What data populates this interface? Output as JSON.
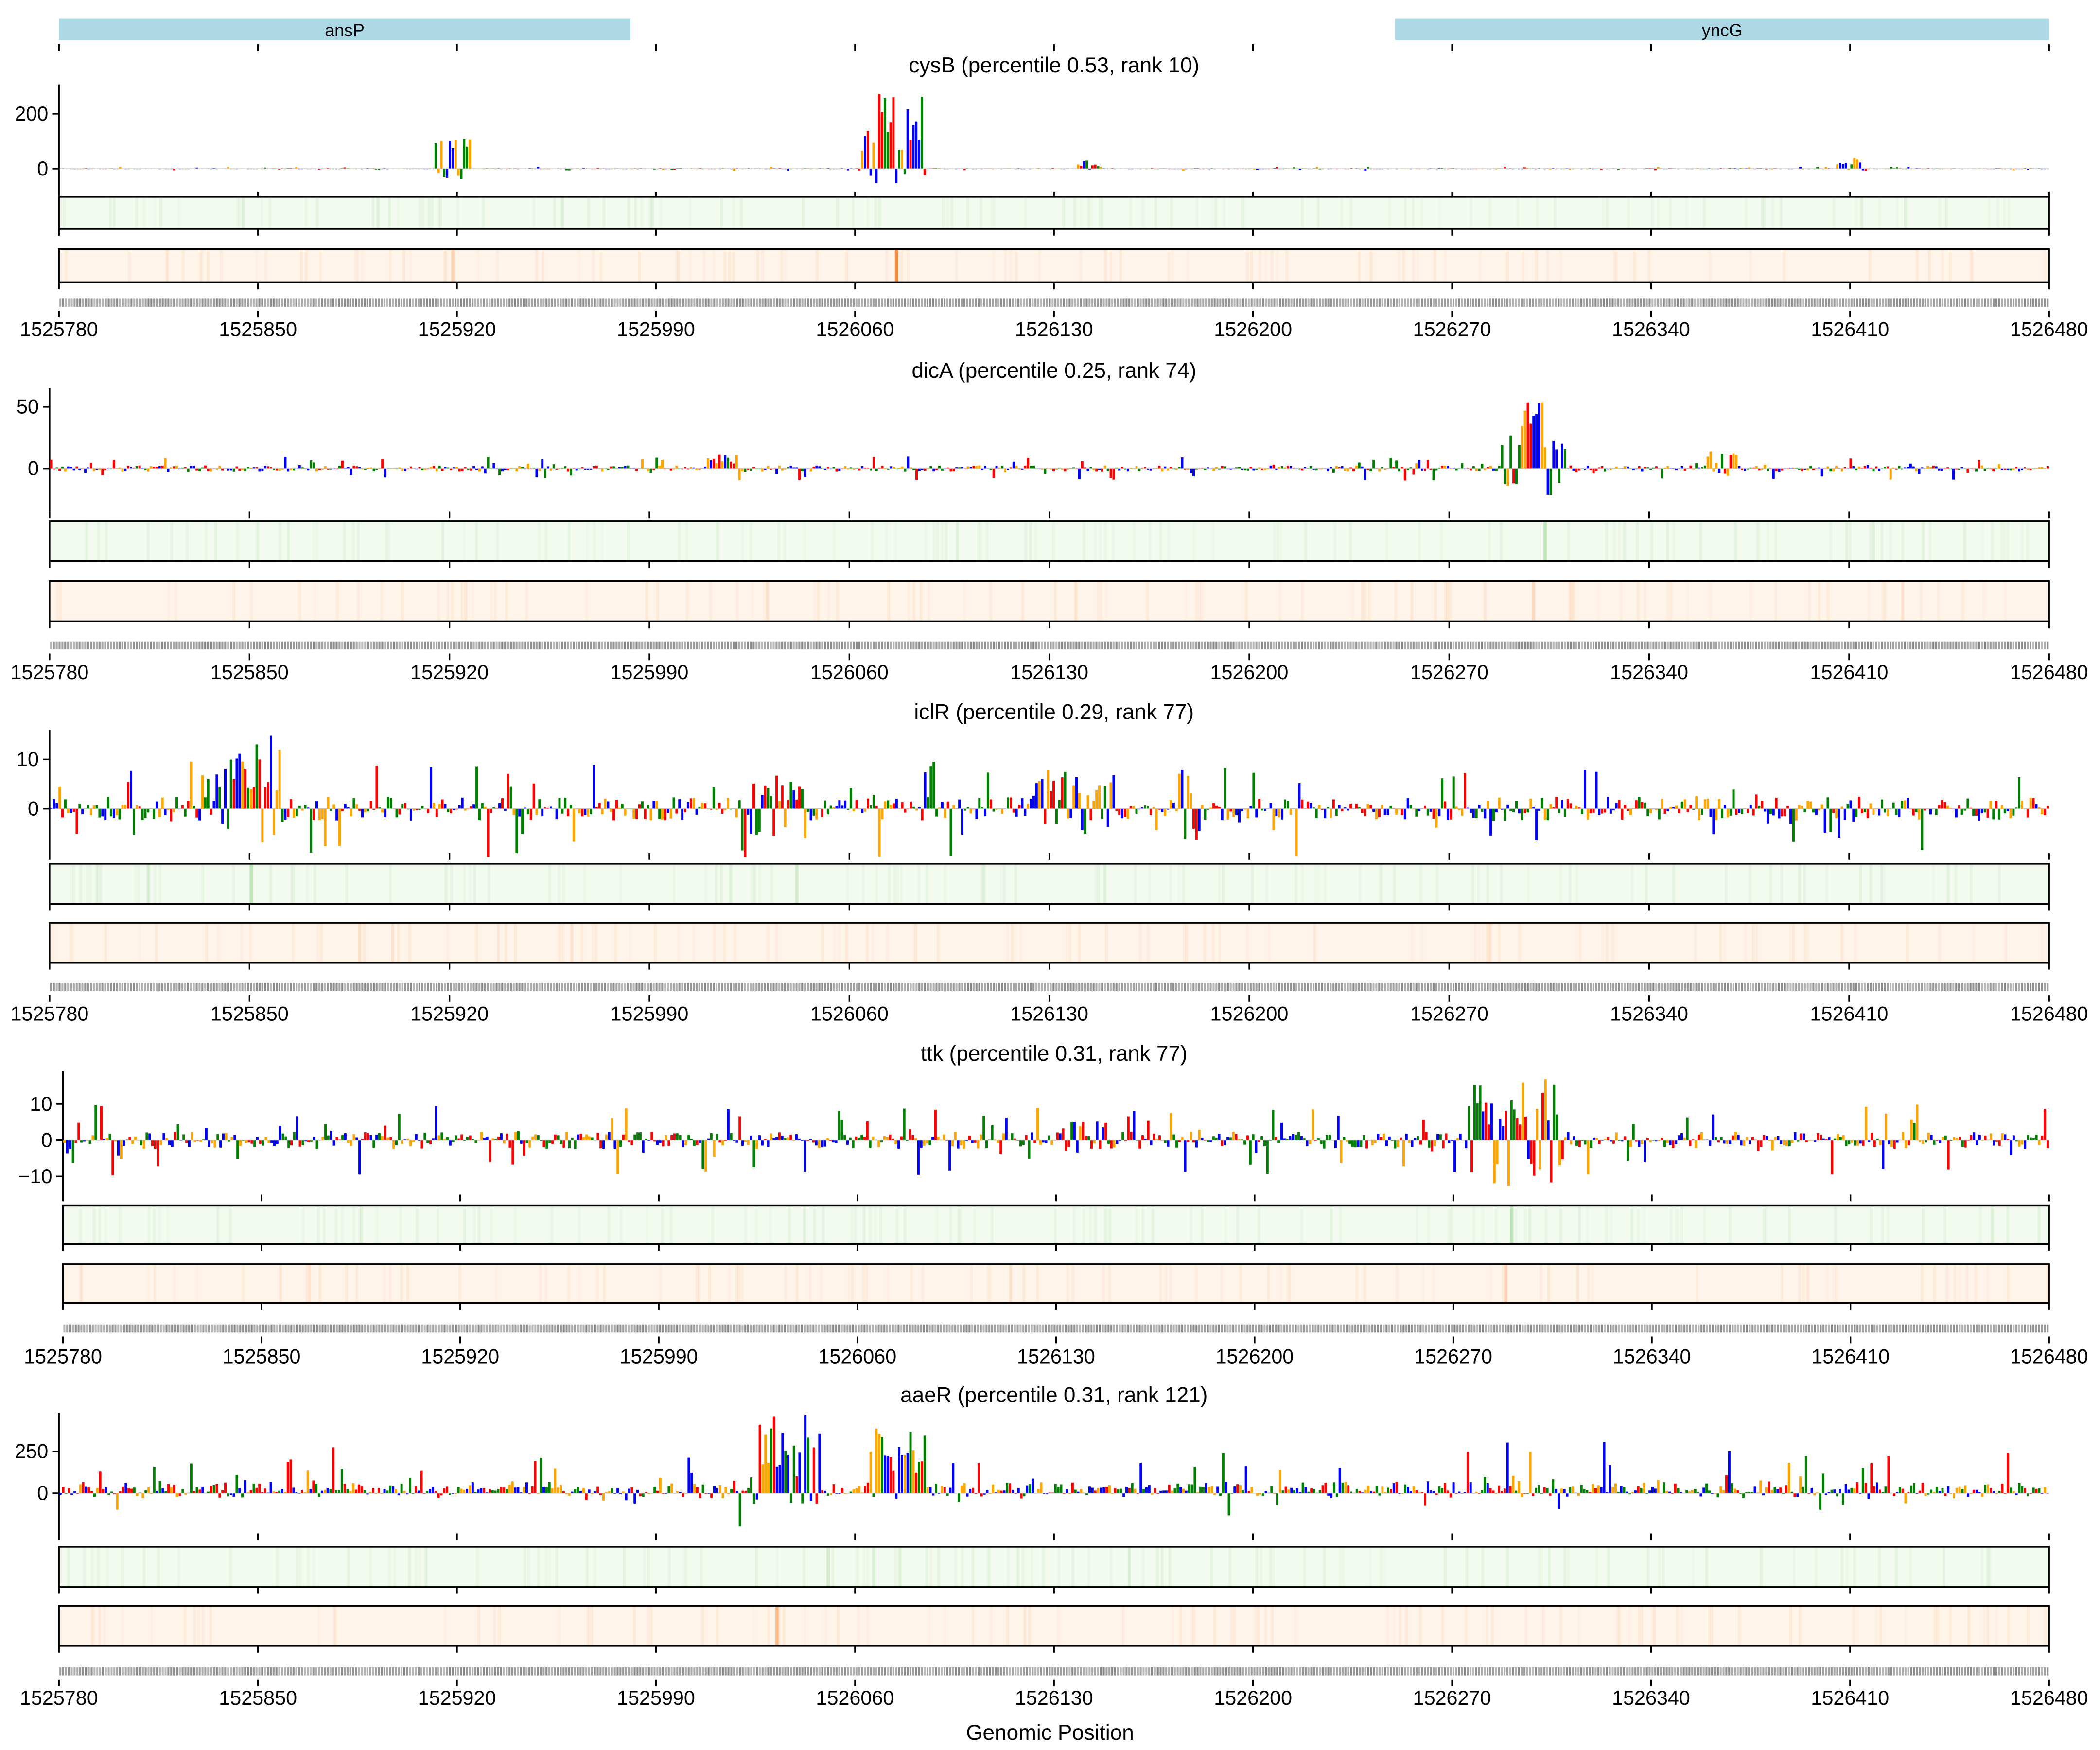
{
  "colors": {
    "A": "#ff0000",
    "C": "#0000ff",
    "G": "#ffa500",
    "T": "#008000",
    "gene": "#add8e6",
    "attr_heat": "#f3faef",
    "attr_heat_hi": "#9fd89a",
    "pred_heat": "#fef4ea",
    "pred_heat_hi": "#f58c3c"
  },
  "genes": [
    {
      "name": "ansP",
      "start": 1525780,
      "end": 1525981
    },
    {
      "name": "yncG",
      "start": 1526250,
      "end": 1526480
    }
  ],
  "chart_data": {
    "type": "sequence-logo-tracks",
    "xlabel": "Genomic Position",
    "xlim": [
      1525780,
      1526480
    ],
    "xticks": [
      "1525780",
      "1525850",
      "1525920",
      "1525990",
      "1526060",
      "1526130",
      "1526200",
      "1526270",
      "1526340",
      "1526410",
      "1526480"
    ],
    "panels": [
      {
        "title": "cysB (percentile 0.53, rank 10)",
        "ylim": [
          -83,
          307
        ],
        "yticks": [
          0,
          200
        ],
        "ytick_labels": [
          "0",
          "200"
        ],
        "noise": 3,
        "noise_bias": 0,
        "peaks": [
          [
            1525912,
            1525924,
            110,
            -40
          ],
          [
            1526062,
            1526084,
            300,
            -60
          ],
          [
            1526138,
            1526146,
            30,
            -5
          ],
          [
            1526405,
            1526415,
            40,
            -8
          ]
        ],
        "attr_highlights": [
          [
            1526068,
            0.15
          ]
        ],
        "pred_highlights": [
          [
            1525918,
            0.3
          ],
          [
            1526074,
            1.0
          ]
        ]
      },
      {
        "title": "dicA (percentile 0.25, rank 74)",
        "ylim": [
          -35,
          65
        ],
        "yticks": [
          0,
          50
        ],
        "ytick_labels": [
          "0",
          "50"
        ],
        "noise": 4,
        "noise_bias": 0,
        "peaks": [
          [
            1526288,
            1526310,
            65,
            -30
          ],
          [
            1526010,
            1526020,
            12,
            -6
          ],
          [
            1526360,
            1526370,
            14,
            -6
          ]
        ],
        "attr_highlights": [
          [
            1526303,
            0.6
          ]
        ],
        "pred_highlights": [
          [
            1526299,
            0.25
          ]
        ]
      },
      {
        "title": "iclR (percentile 0.29, rank 77)",
        "ylim": [
          -9,
          16
        ],
        "yticks": [
          0,
          10
        ],
        "ytick_labels": [
          "0",
          "10"
        ],
        "noise": 4,
        "noise_bias": 0,
        "peaks": [
          [
            1525838,
            1525861,
            15,
            -8
          ],
          [
            1526025,
            1526044,
            7,
            -6
          ],
          [
            1526124,
            1526152,
            8,
            -6
          ],
          [
            1526175,
            1526182,
            9,
            -7
          ]
        ],
        "attr_highlights": [
          [
            1525850,
            0.6
          ],
          [
            1526041,
            0.4
          ]
        ],
        "pred_highlights": [
          [
            1525888,
            0.2
          ]
        ]
      },
      {
        "title": "ttk (percentile 0.31, rank 77)",
        "ylim": [
          -15,
          19
        ],
        "yticks": [
          -10,
          0,
          10
        ],
        "ytick_labels": [
          "−10",
          "0",
          "10"
        ],
        "noise": 4,
        "noise_bias": 0,
        "peaks": [
          [
            1526275,
            1526308,
            18,
            -14
          ],
          [
            1526130,
            1526140,
            6,
            -5
          ]
        ],
        "attr_highlights": [
          [
            1526290,
            0.6
          ]
        ],
        "pred_highlights": [
          [
            1526288,
            0.3
          ]
        ]
      },
      {
        "title": "aaeR (percentile 0.31, rank 121)",
        "ylim": [
          -240,
          480
        ],
        "yticks": [
          0,
          250
        ],
        "ytick_labels": [
          "0",
          "250"
        ],
        "noise": 60,
        "noise_bias": 0.6,
        "peaks": [
          [
            1526018,
            1526021,
            20,
            -230
          ],
          [
            1526023,
            1526047,
            470,
            -80
          ],
          [
            1526065,
            1526084,
            400,
            -60
          ]
        ],
        "attr_highlights": [
          [
            1526050,
            0.4
          ],
          [
            1526066,
            0.3
          ]
        ],
        "pred_highlights": [
          [
            1526032,
            0.6
          ]
        ]
      }
    ]
  }
}
